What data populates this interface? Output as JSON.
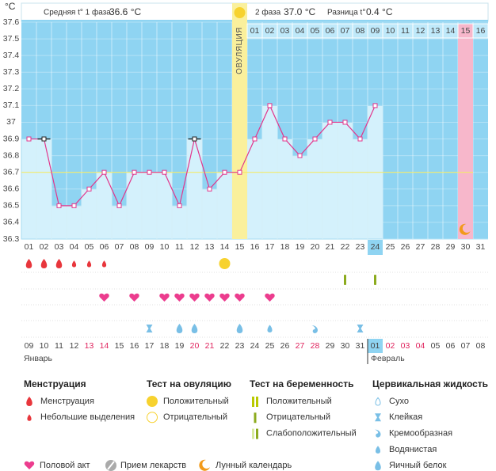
{
  "header": {
    "phase1": "Средняя t° 1 фаза",
    "phase1_temp": "36.6 °C",
    "phase2": "2 фаза",
    "phase2_temp": "37.0 °C",
    "diff": "Разница t°",
    "diff_temp": "0.4 °C"
  },
  "chart_data": {
    "type": "line",
    "y_unit": "°C",
    "categories": [
      "01",
      "02",
      "03",
      "04",
      "05",
      "06",
      "07",
      "08",
      "09",
      "10",
      "11",
      "12",
      "13",
      "14",
      "15",
      "16",
      "17",
      "18",
      "19",
      "20",
      "21",
      "22",
      "23",
      "24",
      "25",
      "26",
      "27",
      "28",
      "29",
      "30",
      "31"
    ],
    "values": [
      36.9,
      36.9,
      36.5,
      36.5,
      36.6,
      36.7,
      36.5,
      36.7,
      36.7,
      36.7,
      36.5,
      36.9,
      36.6,
      36.7,
      36.7,
      36.9,
      37.1,
      36.9,
      36.8,
      36.9,
      37.0,
      37.0,
      36.9,
      37.1,
      null,
      null,
      null,
      null,
      null,
      null,
      null
    ],
    "color": "#e2368c",
    "ylim": [
      36.3,
      37.6
    ],
    "yticks": [
      36.3,
      36.4,
      36.5,
      36.6,
      36.7,
      36.8,
      36.9,
      37,
      37.1,
      37.2,
      37.3,
      37.4,
      37.5,
      37.6
    ],
    "coverline": 36.7,
    "flagged_days": [
      1,
      11
    ],
    "ovulation_day": 14,
    "ovulation_label": "ОВУЛЯЦИЯ",
    "phase2_days": [
      "01",
      "02",
      "03",
      "04",
      "05",
      "06",
      "07",
      "08",
      "09",
      "10",
      "11",
      "12",
      "13",
      "14",
      "15",
      "16"
    ],
    "moon_day": 29,
    "today": 23,
    "dates": [
      "09",
      "10",
      "11",
      "12",
      "13",
      "14",
      "15",
      "16",
      "17",
      "18",
      "19",
      "20",
      "21",
      "22",
      "23",
      "24",
      "25",
      "26",
      "27",
      "28",
      "29",
      "30",
      "31",
      "01",
      "02",
      "03",
      "04",
      "05",
      "06",
      "07",
      "08"
    ],
    "weekend_days": [
      4,
      5,
      11,
      12,
      18,
      19,
      24,
      25,
      26
    ],
    "months": [
      "Январь",
      "Февраль"
    ],
    "menstruation_days": [
      0,
      1,
      2
    ],
    "spotting_days": [
      3,
      4,
      5
    ],
    "ovulation_test_positive": [
      13
    ],
    "pregnancy_test_negative": [
      21,
      23
    ],
    "sex_days": [
      5,
      7,
      9,
      10,
      11,
      12,
      13,
      14,
      16
    ],
    "cervical_sticky": [
      8,
      22
    ],
    "cervical_egg_white": [
      10,
      11,
      14
    ],
    "cervical_watery": [
      16
    ],
    "cervical_creamy": [
      19
    ]
  },
  "legend": {
    "menstruation": {
      "title": "Менструация",
      "items": [
        "Менструация",
        "Небольшие выделения"
      ]
    },
    "ovulation_test": {
      "title": "Тест на овуляцию",
      "items": [
        "Положительный",
        "Отрицательный"
      ]
    },
    "pregnancy_test": {
      "title": "Тест на беременность",
      "items": [
        "Положительный",
        "Отрицательный",
        "Слабоположительный"
      ]
    },
    "cervical": {
      "title": "Цервикальная жидкость",
      "items": [
        "Сухо",
        "Клейкая",
        "Кремообразная",
        "Водянистая",
        "Яичный белок"
      ]
    },
    "other": [
      "Половой акт",
      "Прием лекарств",
      "Лунный календарь"
    ]
  }
}
